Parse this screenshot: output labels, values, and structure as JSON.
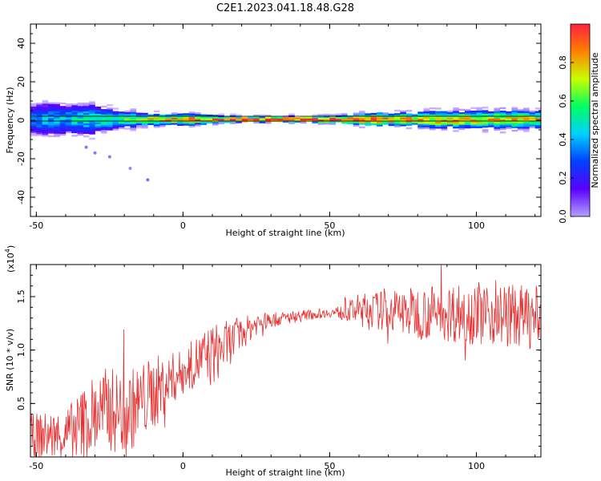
{
  "figure": {
    "title": "C2E1.2023.041.18.48.G28"
  },
  "colors": {
    "snr_line": "#e83030",
    "background": "#ffffff",
    "axis": "#000000"
  },
  "chart_data": [
    {
      "type": "heatmap",
      "xlabel": "Height of straight line (km)",
      "ylabel": "Frequency (Hz)",
      "xlim": [
        -52,
        122
      ],
      "ylim": [
        -50,
        50
      ],
      "x_ticks": [
        -50,
        0,
        50,
        100
      ],
      "y_ticks": [
        -40,
        -20,
        0,
        20,
        40
      ],
      "x_tick_labels": [
        "-50",
        "0",
        "50",
        "100"
      ],
      "y_tick_labels": [
        "-40",
        "-20",
        "0",
        "20",
        "40"
      ],
      "colormap": [
        "#b3a0ff",
        "#5a00ff",
        "#0040ff",
        "#00d0ff",
        "#00ff60",
        "#c8ff00",
        "#ff8000",
        "#ff2040"
      ],
      "band_center_hz": 0,
      "band_half_width_hz": [
        [
          -52,
          8
        ],
        [
          -40,
          7
        ],
        [
          -30,
          6
        ],
        [
          -20,
          4
        ],
        [
          -10,
          2.5
        ],
        [
          0,
          2.5
        ],
        [
          10,
          2
        ],
        [
          20,
          1.5
        ],
        [
          40,
          1.5
        ],
        [
          55,
          2
        ],
        [
          60,
          3
        ],
        [
          80,
          3.5
        ],
        [
          100,
          4
        ],
        [
          122,
          4
        ]
      ],
      "core_amplitude": [
        [
          -52,
          0.35
        ],
        [
          -40,
          0.45
        ],
        [
          -30,
          0.5
        ],
        [
          -20,
          0.6
        ],
        [
          -10,
          0.8
        ],
        [
          0,
          0.85
        ],
        [
          10,
          0.9
        ],
        [
          20,
          1.0
        ],
        [
          55,
          1.0
        ],
        [
          60,
          0.85
        ],
        [
          80,
          0.8
        ],
        [
          100,
          0.8
        ],
        [
          122,
          0.75
        ]
      ],
      "scatter_outliers": [
        [
          -33,
          -14,
          0.1
        ],
        [
          -30,
          -17,
          0.1
        ],
        [
          -25,
          -19,
          0.1
        ],
        [
          -18,
          -25,
          0.08
        ],
        [
          -12,
          -31,
          0.12
        ]
      ],
      "colorbar": {
        "label": "Normalized spectral amplitude",
        "range": [
          0,
          1
        ],
        "ticks": [
          0.0,
          0.2,
          0.4,
          0.6,
          0.8
        ],
        "tick_labels": [
          "0.0",
          "0.2",
          "0.4",
          "0.6",
          "0.8"
        ]
      }
    },
    {
      "type": "line",
      "xlabel": "Height of straight line (km)",
      "ylabel": "SNR (10 * v/v)",
      "scale_label": "(x10",
      "scale_exponent": "4",
      "xlim": [
        -52,
        122
      ],
      "ylim": [
        0,
        18000
      ],
      "x_ticks": [
        -50,
        0,
        50,
        100
      ],
      "y_ticks": [
        5000,
        10000,
        15000
      ],
      "x_tick_labels": [
        "-50",
        "0",
        "50",
        "100"
      ],
      "y_tick_labels": [
        "0.5",
        "1.0",
        "1.5"
      ],
      "series": [
        {
          "x_range": [
            -52,
            122
          ],
          "x_step": 0.2,
          "trend": [
            [
              -52,
              2000
            ],
            [
              -40,
              2000
            ],
            [
              -35,
              3000
            ],
            [
              -30,
              4000
            ],
            [
              -25,
              4500
            ],
            [
              -20,
              4000
            ],
            [
              -15,
              5000
            ],
            [
              -10,
              6000
            ],
            [
              -5,
              7000
            ],
            [
              0,
              8000
            ],
            [
              5,
              9000
            ],
            [
              10,
              9500
            ],
            [
              15,
              10500
            ],
            [
              20,
              11500
            ],
            [
              25,
              12500
            ],
            [
              30,
              12800
            ],
            [
              40,
              13200
            ],
            [
              50,
              13500
            ],
            [
              55,
              13500
            ],
            [
              60,
              13800
            ],
            [
              80,
              13500
            ],
            [
              100,
              13500
            ],
            [
              122,
              13000
            ]
          ],
          "noise_amplitude": [
            [
              -52,
              2000
            ],
            [
              -40,
              2500
            ],
            [
              -30,
              4000
            ],
            [
              -20,
              4000
            ],
            [
              -10,
              3500
            ],
            [
              0,
              2000
            ],
            [
              10,
              3000
            ],
            [
              20,
              1500
            ],
            [
              30,
              700
            ],
            [
              50,
              400
            ],
            [
              55,
              800
            ],
            [
              60,
              1500
            ],
            [
              80,
              2500
            ],
            [
              100,
              3000
            ],
            [
              122,
              3000
            ]
          ]
        }
      ]
    }
  ]
}
